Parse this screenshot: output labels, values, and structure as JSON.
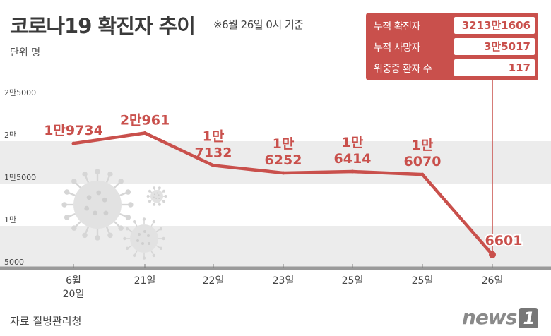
{
  "title": "코로나19 확진자 추이",
  "subtitle": "※6월 26일 0시 기준",
  "unit_label": "단위 명",
  "source": "자료 질병관리청",
  "brand": {
    "text": "news",
    "badge": "1"
  },
  "stats": [
    {
      "label": "누적 확진자",
      "value": "3213만1606"
    },
    {
      "label": "누적 사망자",
      "value": "3만5017"
    },
    {
      "label": "위중증 환자 수",
      "value": "117"
    }
  ],
  "colors": {
    "line": "#c9504c",
    "band": "#ececec",
    "axis": "#9a9a9a",
    "text": "#333333"
  },
  "chart_data": {
    "type": "line",
    "title": "코로나19 확진자 추이",
    "xlabel": "",
    "ylabel": "",
    "ylim": [
      5000,
      25000
    ],
    "yticks": [
      {
        "value": 5000,
        "label": "5000"
      },
      {
        "value": 10000,
        "label": "1만"
      },
      {
        "value": 15000,
        "label": "1만5000"
      },
      {
        "value": 20000,
        "label": "2만"
      },
      {
        "value": 25000,
        "label": "2만5000"
      }
    ],
    "categories": [
      "6월 20일",
      "21일",
      "22일",
      "23일",
      "25일",
      "25일",
      "26일"
    ],
    "category_lines": [
      [
        "6월",
        "20일"
      ],
      [
        "21일"
      ],
      [
        "22일"
      ],
      [
        "23일"
      ],
      [
        "25일"
      ],
      [
        "25일"
      ],
      [
        "26일"
      ]
    ],
    "values": [
      19734,
      20961,
      17132,
      16252,
      16414,
      16070,
      6601
    ],
    "data_labels": [
      [
        "1만9734"
      ],
      [
        "2만961"
      ],
      [
        "1만",
        "7132"
      ],
      [
        "1만",
        "6252"
      ],
      [
        "1만",
        "6414"
      ],
      [
        "1만",
        "6070"
      ],
      [
        "6601"
      ]
    ],
    "grid": "alternating-bands",
    "legend": "none"
  }
}
